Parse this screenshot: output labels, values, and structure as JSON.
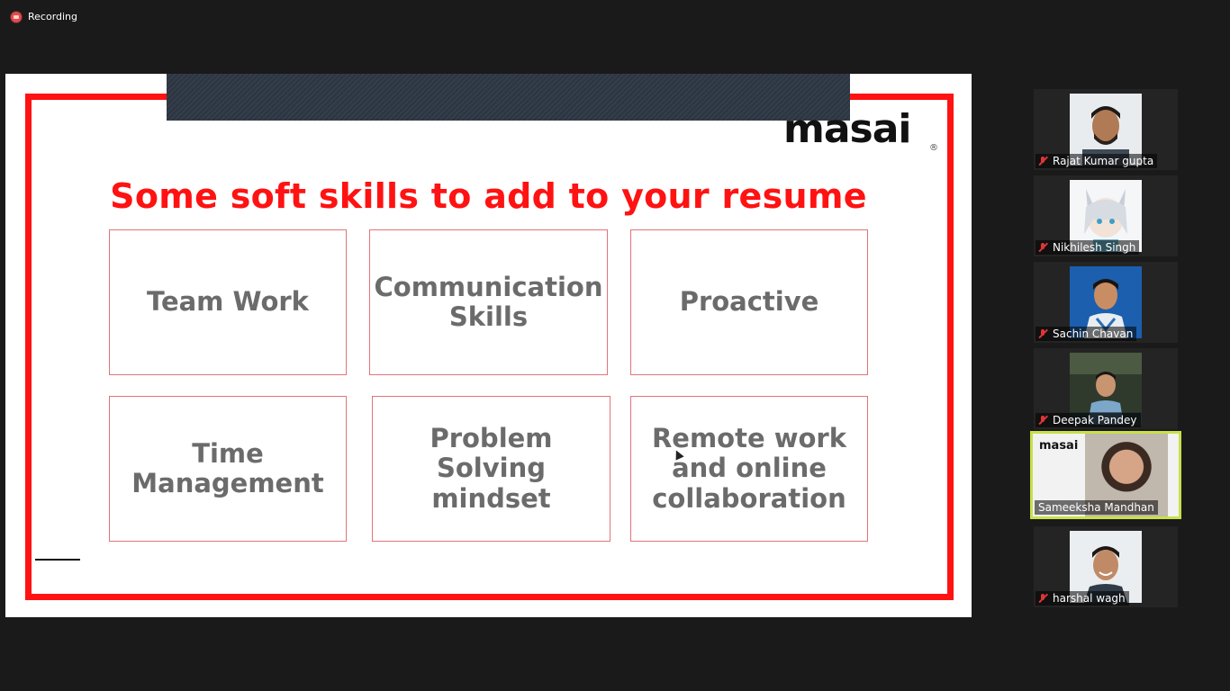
{
  "recording": {
    "label": "Recording"
  },
  "slide": {
    "logo_text": "masai",
    "logo_mark": "®",
    "title": "Some soft skills to add to your resume",
    "skills": [
      "Team Work",
      "Communication\nSkills",
      "Proactive",
      "Time\nManagement",
      "Problem\nSolving\nmindset",
      "Remote work\nand online\ncollaboration"
    ]
  },
  "participants": [
    {
      "name": "Rajat Kumar gupta",
      "muted": true
    },
    {
      "name": "Nikhilesh Singh",
      "muted": true
    },
    {
      "name": "Sachin Chavan",
      "muted": true
    },
    {
      "name": "Deepak Pandey",
      "muted": true
    },
    {
      "name": "Sameeksha Mandhan",
      "muted": false,
      "active_speaker": true,
      "overlay_text": "masai"
    },
    {
      "name": "harshal wagh",
      "muted": true
    }
  ],
  "colors": {
    "frame_red": "#ff1212",
    "active_border": "#c8e04a",
    "background": "#1a1a1a"
  }
}
